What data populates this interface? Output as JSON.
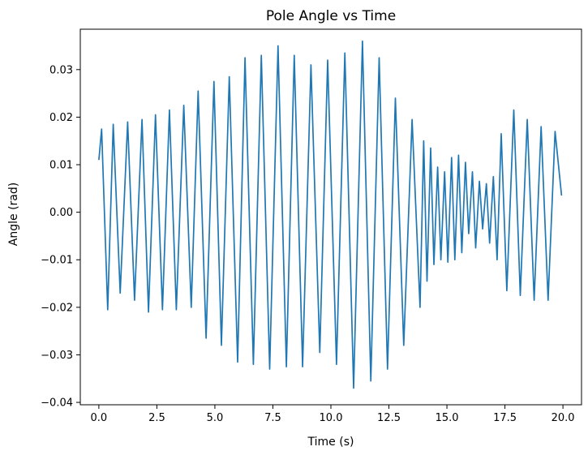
{
  "chart_data": {
    "type": "line",
    "title": "Pole Angle vs Time",
    "xlabel": "Time (s)",
    "ylabel": "Angle (rad)",
    "xlim": [
      -0.8,
      20.8
    ],
    "ylim": [
      -0.0405,
      0.0385
    ],
    "xticks": [
      0,
      2.5,
      5,
      7.5,
      10,
      12.5,
      15,
      17.5,
      20
    ],
    "xtick_labels": [
      "0.0",
      "2.5",
      "5.0",
      "7.5",
      "10.0",
      "12.5",
      "15.0",
      "17.5",
      "20.0"
    ],
    "yticks": [
      -0.04,
      -0.03,
      -0.02,
      -0.01,
      0.0,
      0.01,
      0.02,
      0.03
    ],
    "ytick_labels": [
      "−0.04",
      "−0.03",
      "−0.02",
      "−0.01",
      "0.00",
      "0.01",
      "0.02",
      "0.03"
    ],
    "grid": false,
    "legend": "none",
    "series": [
      {
        "color": "#1f77b4",
        "x": [
          0.0,
          0.12,
          0.38,
          0.62,
          0.92,
          1.24,
          1.54,
          1.86,
          2.14,
          2.44,
          2.74,
          3.04,
          3.34,
          3.66,
          3.98,
          4.28,
          4.62,
          4.96,
          5.28,
          5.62,
          5.98,
          6.3,
          6.66,
          7.0,
          7.36,
          7.72,
          8.08,
          8.42,
          8.78,
          9.14,
          9.52,
          9.86,
          10.24,
          10.6,
          10.98,
          11.36,
          11.72,
          12.08,
          12.44,
          12.78,
          13.14,
          13.5,
          13.84,
          14.0,
          14.14,
          14.3,
          14.44,
          14.6,
          14.74,
          14.9,
          15.04,
          15.2,
          15.34,
          15.5,
          15.64,
          15.8,
          15.94,
          16.1,
          16.24,
          16.4,
          16.54,
          16.7,
          16.84,
          17.0,
          17.16,
          17.34,
          17.58,
          17.88,
          18.16,
          18.46,
          18.76,
          19.06,
          19.36,
          19.66,
          19.94
        ],
        "y": [
          0.011,
          0.0175,
          -0.0205,
          0.0185,
          -0.017,
          0.019,
          -0.0185,
          0.0195,
          -0.021,
          0.0205,
          -0.0205,
          0.0215,
          -0.0205,
          0.0225,
          -0.02,
          0.0255,
          -0.0265,
          0.0275,
          -0.028,
          0.0285,
          -0.0315,
          0.0325,
          -0.032,
          0.033,
          -0.033,
          0.035,
          -0.0325,
          0.033,
          -0.0325,
          0.031,
          -0.0295,
          0.032,
          -0.032,
          0.0335,
          -0.037,
          0.036,
          -0.0355,
          0.0325,
          -0.033,
          0.024,
          -0.028,
          0.0195,
          -0.02,
          0.015,
          -0.0145,
          0.0135,
          -0.011,
          0.0095,
          -0.01,
          0.0085,
          -0.0105,
          0.0115,
          -0.01,
          0.012,
          -0.0085,
          0.0105,
          -0.0045,
          0.0085,
          -0.0075,
          0.0065,
          -0.0035,
          0.006,
          -0.0065,
          0.0075,
          -0.01,
          0.0165,
          -0.0165,
          0.0215,
          -0.0175,
          0.0195,
          -0.0185,
          0.018,
          -0.0185,
          0.017,
          0.0035
        ]
      }
    ]
  }
}
